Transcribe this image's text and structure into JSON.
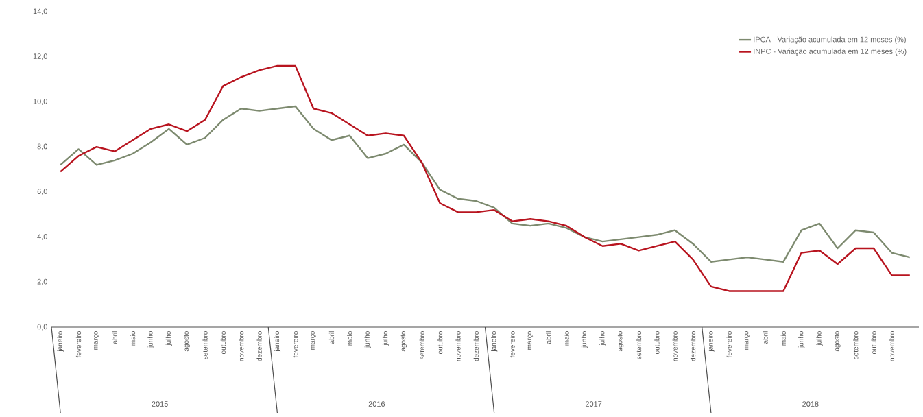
{
  "chart_data": {
    "type": "line",
    "categories": [
      "janeiro",
      "fevereiro",
      "março",
      "abril",
      "maio",
      "junho",
      "julho",
      "agosto",
      "setembro",
      "outubro",
      "novembro",
      "dezembro",
      "janeiro",
      "fevereiro",
      "março",
      "abril",
      "maio",
      "junho",
      "julho",
      "agosto",
      "setembro",
      "outubro",
      "novembro",
      "dezembro",
      "janeiro",
      "fevereiro",
      "março",
      "abril",
      "maio",
      "junho",
      "julho",
      "agosto",
      "setembro",
      "outubro",
      "novembro",
      "dezembro",
      "janeiro",
      "fevereiro",
      "março",
      "abril",
      "maio",
      "junho",
      "julho",
      "agosto",
      "setembro",
      "outubro",
      "novembro",
      null
    ],
    "series": [
      {
        "name": "IPCA - Variação acumulada em 12 meses (%)",
        "color": "#7d8a6f",
        "values": [
          7.2,
          7.9,
          7.2,
          7.4,
          7.7,
          8.2,
          8.8,
          8.1,
          8.4,
          9.2,
          9.7,
          9.6,
          9.7,
          9.8,
          8.8,
          8.3,
          8.5,
          7.5,
          7.7,
          8.1,
          7.3,
          6.1,
          5.7,
          5.6,
          5.3,
          4.6,
          4.5,
          4.6,
          4.4,
          4.0,
          3.8,
          3.9,
          4.0,
          4.1,
          4.3,
          3.7,
          2.9,
          3.0,
          3.1,
          3.0,
          2.9,
          4.3,
          4.6,
          3.5,
          4.3,
          4.2,
          3.3,
          3.1
        ]
      },
      {
        "name": "INPC - Variação acumulada em 12 meses (%)",
        "color": "#b8141f",
        "values": [
          6.9,
          7.6,
          8.0,
          7.8,
          8.3,
          8.8,
          9.0,
          8.7,
          9.2,
          10.7,
          11.1,
          11.4,
          11.6,
          11.6,
          9.7,
          9.5,
          9.0,
          8.5,
          8.6,
          8.5,
          7.3,
          5.5,
          5.1,
          5.1,
          5.2,
          4.7,
          4.8,
          4.7,
          4.5,
          4.0,
          3.6,
          3.7,
          3.4,
          3.6,
          3.8,
          3.0,
          1.8,
          1.6,
          1.6,
          1.6,
          1.6,
          3.3,
          3.4,
          2.8,
          3.5,
          3.5,
          2.3,
          2.3
        ]
      }
    ],
    "ylim": [
      0,
      14
    ],
    "yticks": [
      {
        "value": 0,
        "label": "0,0"
      },
      {
        "value": 2,
        "label": "2,0"
      },
      {
        "value": 4,
        "label": "4,0"
      },
      {
        "value": 6,
        "label": "6,0"
      },
      {
        "value": 8,
        "label": "8,0"
      },
      {
        "value": 10,
        "label": "10,0"
      },
      {
        "value": 12,
        "label": "12,0"
      },
      {
        "value": 14,
        "label": "14,0"
      }
    ],
    "annotations": [
      "2015",
      "2016",
      "2017",
      "2018"
    ],
    "legend": "top right"
  }
}
